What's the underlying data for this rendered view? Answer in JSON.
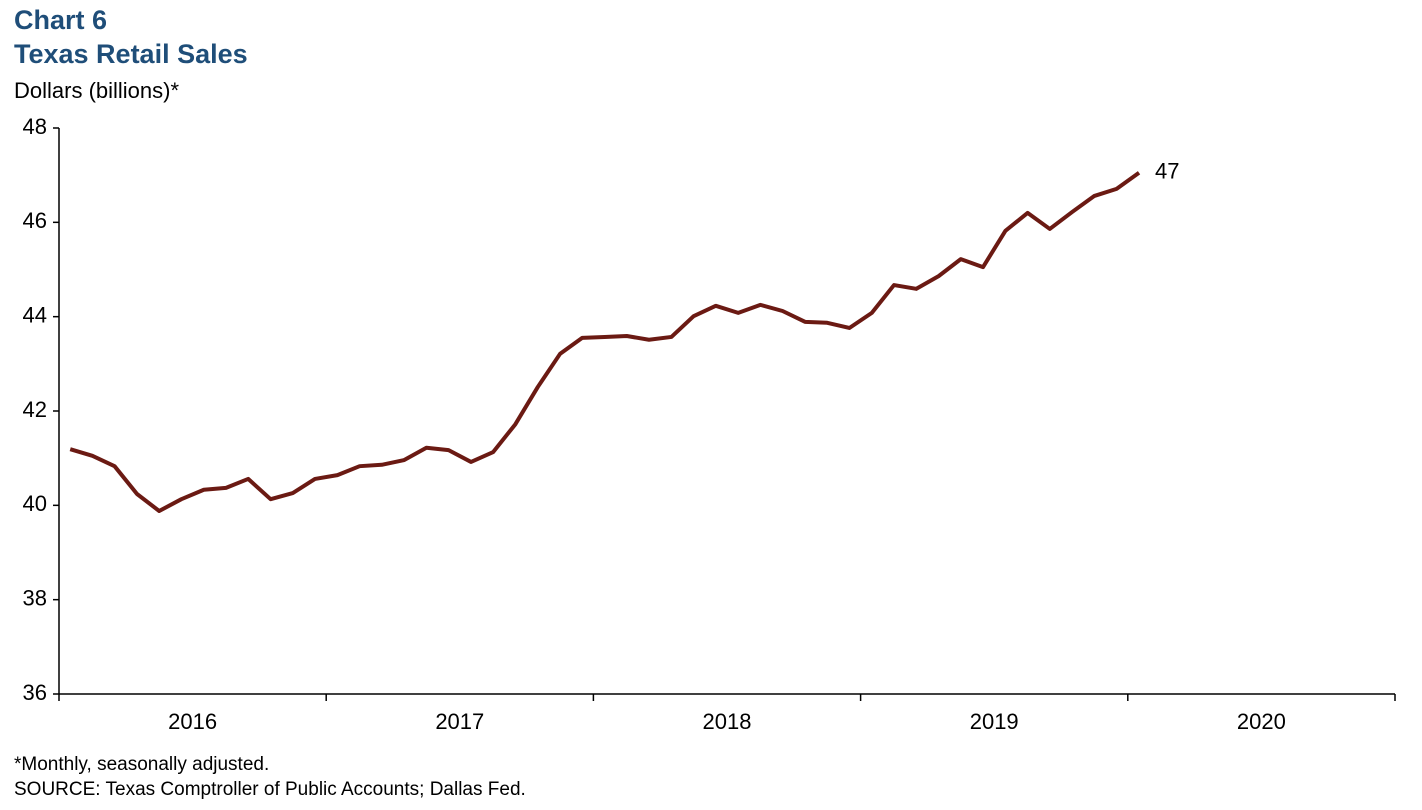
{
  "chart_data": {
    "type": "line",
    "title": "Chart 6",
    "subtitle": "Texas Retail Sales",
    "y_label": "Dollars (billions)*",
    "notes": [
      "*Monthly, seasonally adjusted.",
      "SOURCE: Texas Comptroller of Public Accounts; Dallas Fed."
    ],
    "categories": [
      "2016",
      "2017",
      "2018",
      "2019",
      "2020"
    ],
    "x": [
      2016.042,
      2016.125,
      2016.208,
      2016.292,
      2016.375,
      2016.458,
      2016.542,
      2016.625,
      2016.708,
      2016.792,
      2016.875,
      2016.958,
      2017.042,
      2017.125,
      2017.208,
      2017.292,
      2017.375,
      2017.458,
      2017.542,
      2017.625,
      2017.708,
      2017.792,
      2017.875,
      2017.958,
      2018.042,
      2018.125,
      2018.208,
      2018.292,
      2018.375,
      2018.458,
      2018.542,
      2018.625,
      2018.708,
      2018.792,
      2018.875,
      2018.958,
      2019.042,
      2019.125,
      2019.208,
      2019.292,
      2019.375,
      2019.458,
      2019.542,
      2019.625,
      2019.708,
      2019.792,
      2019.875,
      2019.958,
      2020.042
    ],
    "series": [
      {
        "name": "Texas Retail Sales",
        "color": "#6b1a13",
        "values": [
          41.19,
          41.05,
          40.83,
          40.24,
          39.88,
          40.13,
          40.33,
          40.37,
          40.56,
          40.13,
          40.26,
          40.56,
          40.64,
          40.83,
          40.86,
          40.96,
          41.22,
          41.17,
          40.92,
          41.13,
          41.72,
          42.51,
          43.21,
          43.55,
          43.57,
          43.59,
          43.51,
          43.57,
          44.01,
          44.23,
          44.08,
          44.25,
          44.12,
          43.89,
          43.87,
          43.76,
          44.08,
          44.67,
          44.59,
          44.86,
          45.22,
          45.05,
          45.82,
          46.2,
          45.86,
          46.22,
          46.56,
          46.71,
          47.05
        ],
        "value_labels": [
          null,
          null,
          null,
          null,
          null,
          null,
          null,
          null,
          null,
          null,
          null,
          null,
          null,
          null,
          null,
          null,
          null,
          null,
          null,
          null,
          null,
          null,
          null,
          null,
          null,
          null,
          null,
          null,
          null,
          null,
          null,
          null,
          null,
          null,
          null,
          null,
          null,
          null,
          null,
          null,
          null,
          null,
          null,
          null,
          null,
          null,
          null,
          null,
          "47"
        ]
      }
    ],
    "xlim": [
      2016,
      2021
    ],
    "xticks": [
      2016,
      2017,
      2018,
      2019,
      2020,
      2021
    ],
    "ylim": [
      36,
      48
    ],
    "yticks": [
      36,
      38,
      40,
      42,
      44,
      46,
      48
    ],
    "grid": false
  }
}
